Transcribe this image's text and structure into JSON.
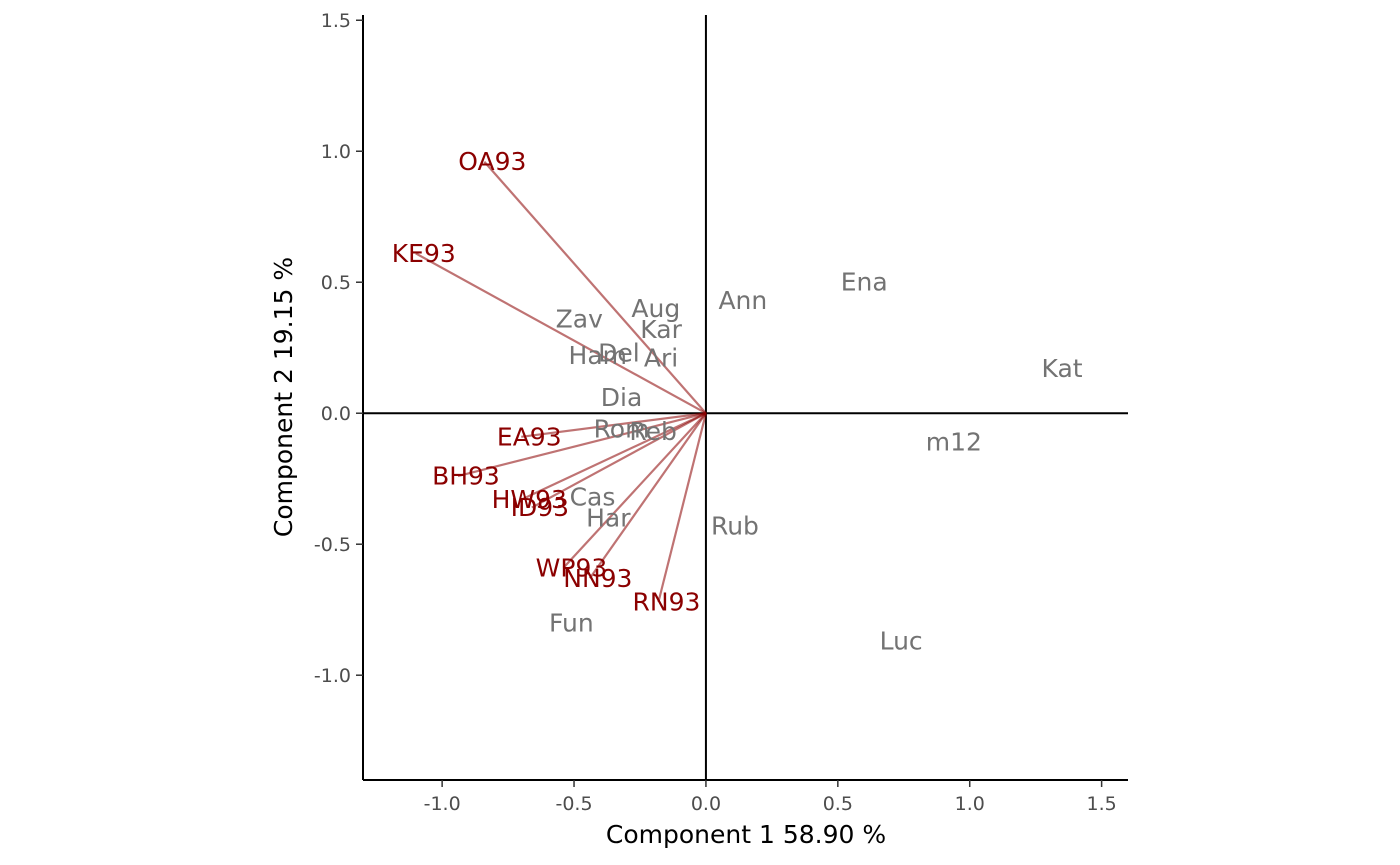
{
  "chart_data": {
    "type": "scatter",
    "xlabel": "Component 1 58.90 %",
    "ylabel": "Component 2 19.15 %",
    "xlim": [
      -1.3,
      1.6
    ],
    "ylim": [
      -1.4,
      1.52
    ],
    "xticks": [
      -1.0,
      -0.5,
      0.0,
      0.5,
      1.0,
      1.5
    ],
    "yticks": [
      -1.0,
      -0.5,
      0.0,
      0.5,
      1.0,
      1.5
    ],
    "xtick_labels": [
      "-1.0",
      "-0.5",
      "0.0",
      "0.5",
      "1.0",
      "1.5"
    ],
    "ytick_labels": [
      "-1.0",
      "-0.5",
      "0.0",
      "0.5",
      "1.0",
      "1.5"
    ],
    "reference_lines": {
      "x": 0,
      "y": 0
    },
    "colors": {
      "loading": "#8b0000",
      "score": "#737373",
      "vector": "#8b0000"
    },
    "loadings": [
      {
        "label": "OA93",
        "x": -0.84,
        "y": 0.96
      },
      {
        "label": "KE93",
        "x": -1.1,
        "y": 0.61
      },
      {
        "label": "EA93",
        "x": -0.7,
        "y": -0.09
      },
      {
        "label": "BH93",
        "x": -0.94,
        "y": -0.24
      },
      {
        "label": "HW93",
        "x": -0.7,
        "y": -0.33
      },
      {
        "label": "ID93",
        "x": -0.66,
        "y": -0.36
      },
      {
        "label": "WP93",
        "x": -0.54,
        "y": -0.59
      },
      {
        "label": "NN93",
        "x": -0.44,
        "y": -0.63
      },
      {
        "label": "RN93",
        "x": -0.18,
        "y": -0.72
      }
    ],
    "scores": [
      {
        "label": "Ann",
        "x": 0.14,
        "y": 0.43
      },
      {
        "label": "Ena",
        "x": 0.6,
        "y": 0.5
      },
      {
        "label": "Kat",
        "x": 1.35,
        "y": 0.17
      },
      {
        "label": "Aug",
        "x": -0.19,
        "y": 0.4
      },
      {
        "label": "Zav",
        "x": -0.48,
        "y": 0.36
      },
      {
        "label": "Kar",
        "x": -0.17,
        "y": 0.32
      },
      {
        "label": "Ham",
        "x": -0.41,
        "y": 0.22
      },
      {
        "label": "Del",
        "x": -0.33,
        "y": 0.23
      },
      {
        "label": "Ari",
        "x": -0.17,
        "y": 0.21
      },
      {
        "label": "Dia",
        "x": -0.32,
        "y": 0.06
      },
      {
        "label": "Rom",
        "x": -0.32,
        "y": -0.06
      },
      {
        "label": "Reb",
        "x": -0.2,
        "y": -0.07
      },
      {
        "label": "m12",
        "x": 0.94,
        "y": -0.11
      },
      {
        "label": "Cas",
        "x": -0.43,
        "y": -0.32
      },
      {
        "label": "Har",
        "x": -0.37,
        "y": -0.4
      },
      {
        "label": "Rub",
        "x": 0.11,
        "y": -0.43
      },
      {
        "label": "Fun",
        "x": -0.51,
        "y": -0.8
      },
      {
        "label": "Luc",
        "x": 0.74,
        "y": -0.87
      }
    ]
  }
}
